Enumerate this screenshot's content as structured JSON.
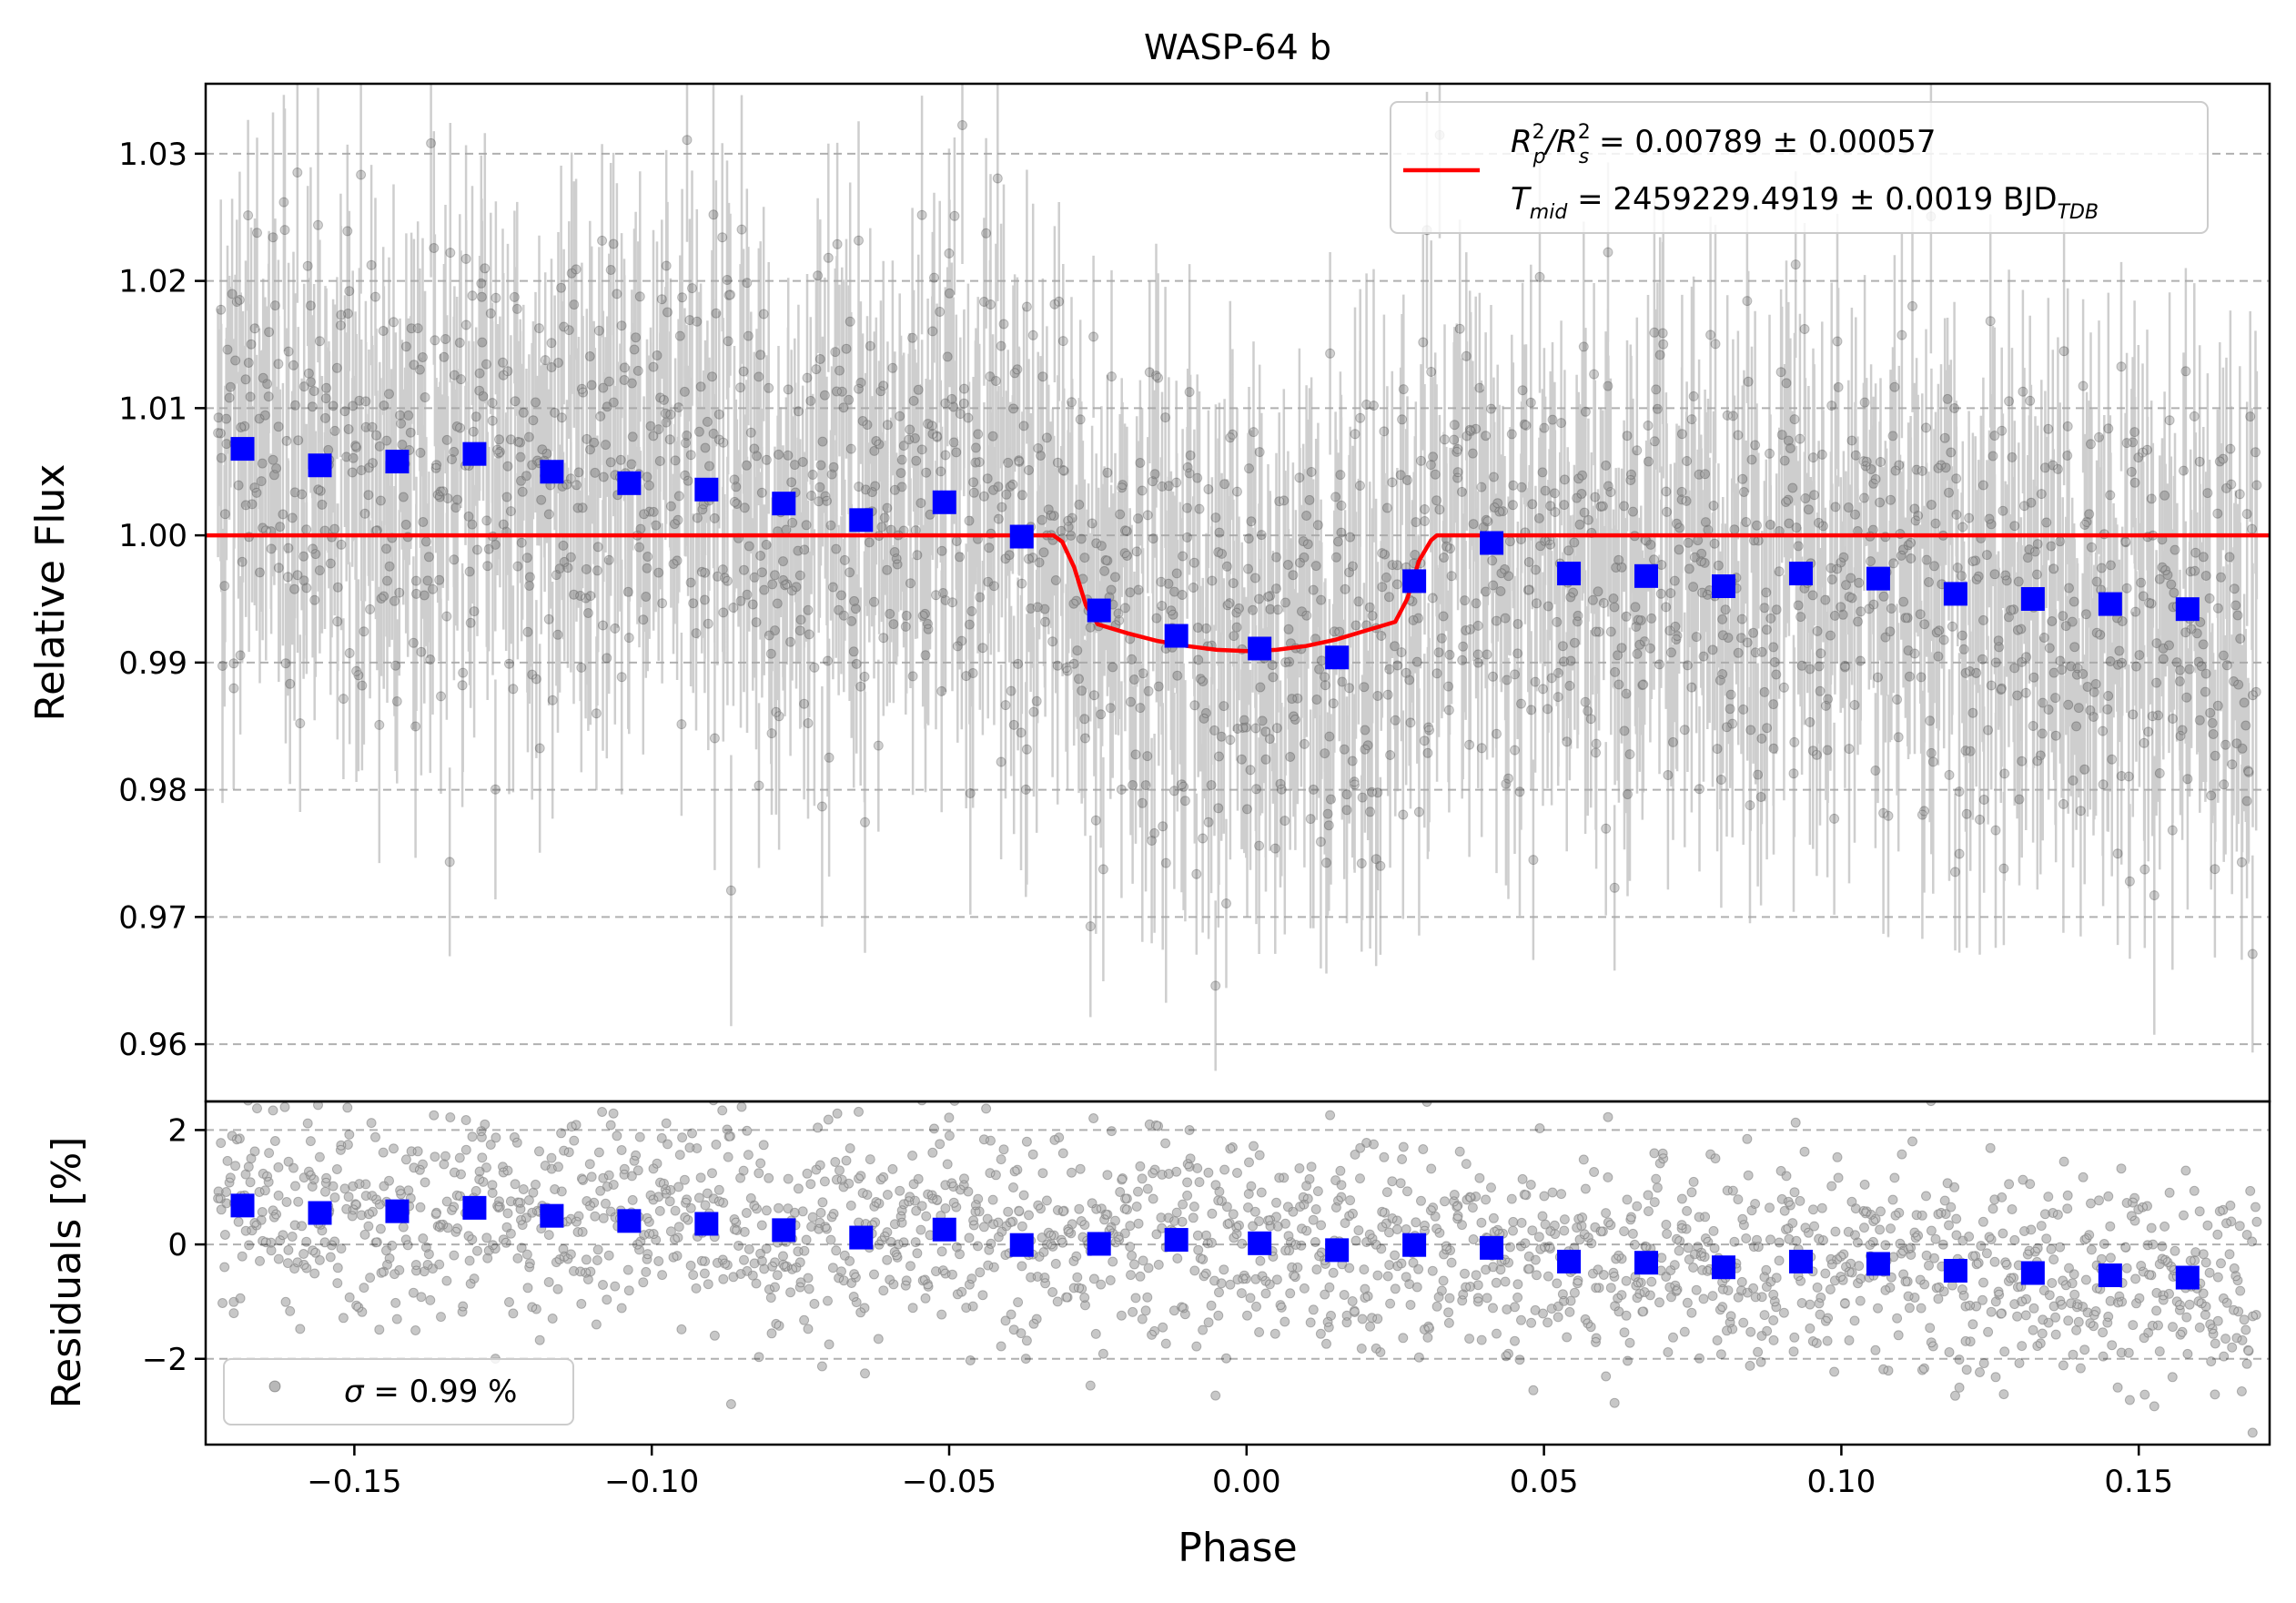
{
  "chart_data": {
    "type": "scatter",
    "title": "WASP-64 b",
    "xlabel": "Phase",
    "xlim": [
      -0.175,
      0.172
    ],
    "x_ticks": [
      -0.15,
      -0.1,
      -0.05,
      0.0,
      0.05,
      0.1,
      0.15
    ],
    "x_tick_labels": [
      "−0.15",
      "−0.10",
      "−0.05",
      "0.00",
      "0.05",
      "0.10",
      "0.15"
    ],
    "colors": {
      "raw_points": "#000000",
      "error_bars": "#a6a6a6",
      "binned": "#0000ff",
      "model": "#ff0000",
      "grid": "#b0b0b0"
    },
    "top_panel": {
      "ylabel": "Relative Flux",
      "ylim": [
        0.9555,
        1.0355
      ],
      "y_ticks": [
        0.96,
        0.97,
        0.98,
        0.99,
        1.0,
        1.01,
        1.02,
        1.03
      ],
      "y_tick_labels": [
        "0.96",
        "0.97",
        "0.98",
        "0.99",
        "1.00",
        "1.01",
        "1.02",
        "1.03"
      ],
      "grid": "horizontal-dashed",
      "raw_scatter": "about 1900 grey points with error bars, scatter about 0.01 around the model",
      "binned": {
        "name": "binned data",
        "x": [
          -0.1688,
          -0.1558,
          -0.1428,
          -0.1298,
          -0.1168,
          -0.1038,
          -0.0908,
          -0.0778,
          -0.0648,
          -0.0508,
          -0.0378,
          -0.0248,
          -0.0118,
          0.0022,
          0.0152,
          0.0282,
          0.0412,
          0.0542,
          0.0672,
          0.0802,
          0.0932,
          0.1062,
          0.1192,
          0.1322,
          0.1452,
          0.1582
        ],
        "y": [
          1.0068,
          1.0055,
          1.0058,
          1.0064,
          1.005,
          1.0041,
          1.0036,
          1.0025,
          1.0012,
          1.0026,
          0.9999,
          0.9941,
          0.9921,
          0.9911,
          0.9904,
          0.9964,
          0.9994,
          0.997,
          0.9968,
          0.996,
          0.997,
          0.9966,
          0.9954,
          0.995,
          0.9946,
          0.9942
        ]
      },
      "model": {
        "name": "transit model",
        "baseline": 1.0,
        "depth_points": {
          "x": [
            -0.175,
            -0.0325,
            -0.031,
            -0.029,
            -0.027,
            -0.025,
            -0.02,
            -0.015,
            -0.01,
            -0.005,
            0.0,
            0.005,
            0.01,
            0.015,
            0.02,
            0.025,
            0.027,
            0.029,
            0.031,
            0.032,
            0.172
          ],
          "y": [
            1.0,
            1.0,
            0.9995,
            0.9975,
            0.9945,
            0.993,
            0.9923,
            0.9917,
            0.9913,
            0.991,
            0.9909,
            0.991,
            0.9913,
            0.9918,
            0.9925,
            0.9932,
            0.995,
            0.998,
            0.9996,
            1.0,
            1.0
          ]
        }
      },
      "legend": {
        "placement": "top-right",
        "line1_main": "R",
        "line1_sup_a": "2",
        "line1_sub_a": "p",
        "line1_slash": "/R",
        "line1_sup_b": "2",
        "line1_sub_b": "s",
        "line1_rest": " = 0.00789 ± 0.00057",
        "line2_main": "T",
        "line2_sub": "mid",
        "line2_rest": " = 2459229.4919 ± 0.0019 BJD",
        "line2_unit_sub": "TDB"
      }
    },
    "bottom_panel": {
      "ylabel": "Residuals [%]",
      "ylim": [
        -3.5,
        2.5
      ],
      "y_ticks": [
        -2,
        0,
        2
      ],
      "y_tick_labels": [
        "−2",
        "0",
        "2"
      ],
      "grid": "horizontal-dashed",
      "raw_scatter": "about 1900 grey residual points, scatter about 1%",
      "binned": {
        "name": "binned residuals",
        "x": [
          -0.1688,
          -0.1558,
          -0.1428,
          -0.1298,
          -0.1168,
          -0.1038,
          -0.0908,
          -0.0778,
          -0.0648,
          -0.0508,
          -0.0378,
          -0.0248,
          -0.0118,
          0.0022,
          0.0152,
          0.0282,
          0.0412,
          0.0542,
          0.0672,
          0.0802,
          0.0932,
          0.1062,
          0.1192,
          0.1322,
          0.1452,
          0.1582
        ],
        "y": [
          0.68,
          0.55,
          0.58,
          0.64,
          0.5,
          0.41,
          0.36,
          0.25,
          0.12,
          0.26,
          -0.01,
          0.01,
          0.08,
          0.02,
          -0.1,
          -0.01,
          -0.06,
          -0.3,
          -0.32,
          -0.4,
          -0.3,
          -0.34,
          -0.46,
          -0.5,
          -0.54,
          -0.58
        ]
      },
      "legend": {
        "placement": "bottom-left",
        "sigma_symbol": "σ",
        "text": " = 0.99 %"
      }
    }
  }
}
